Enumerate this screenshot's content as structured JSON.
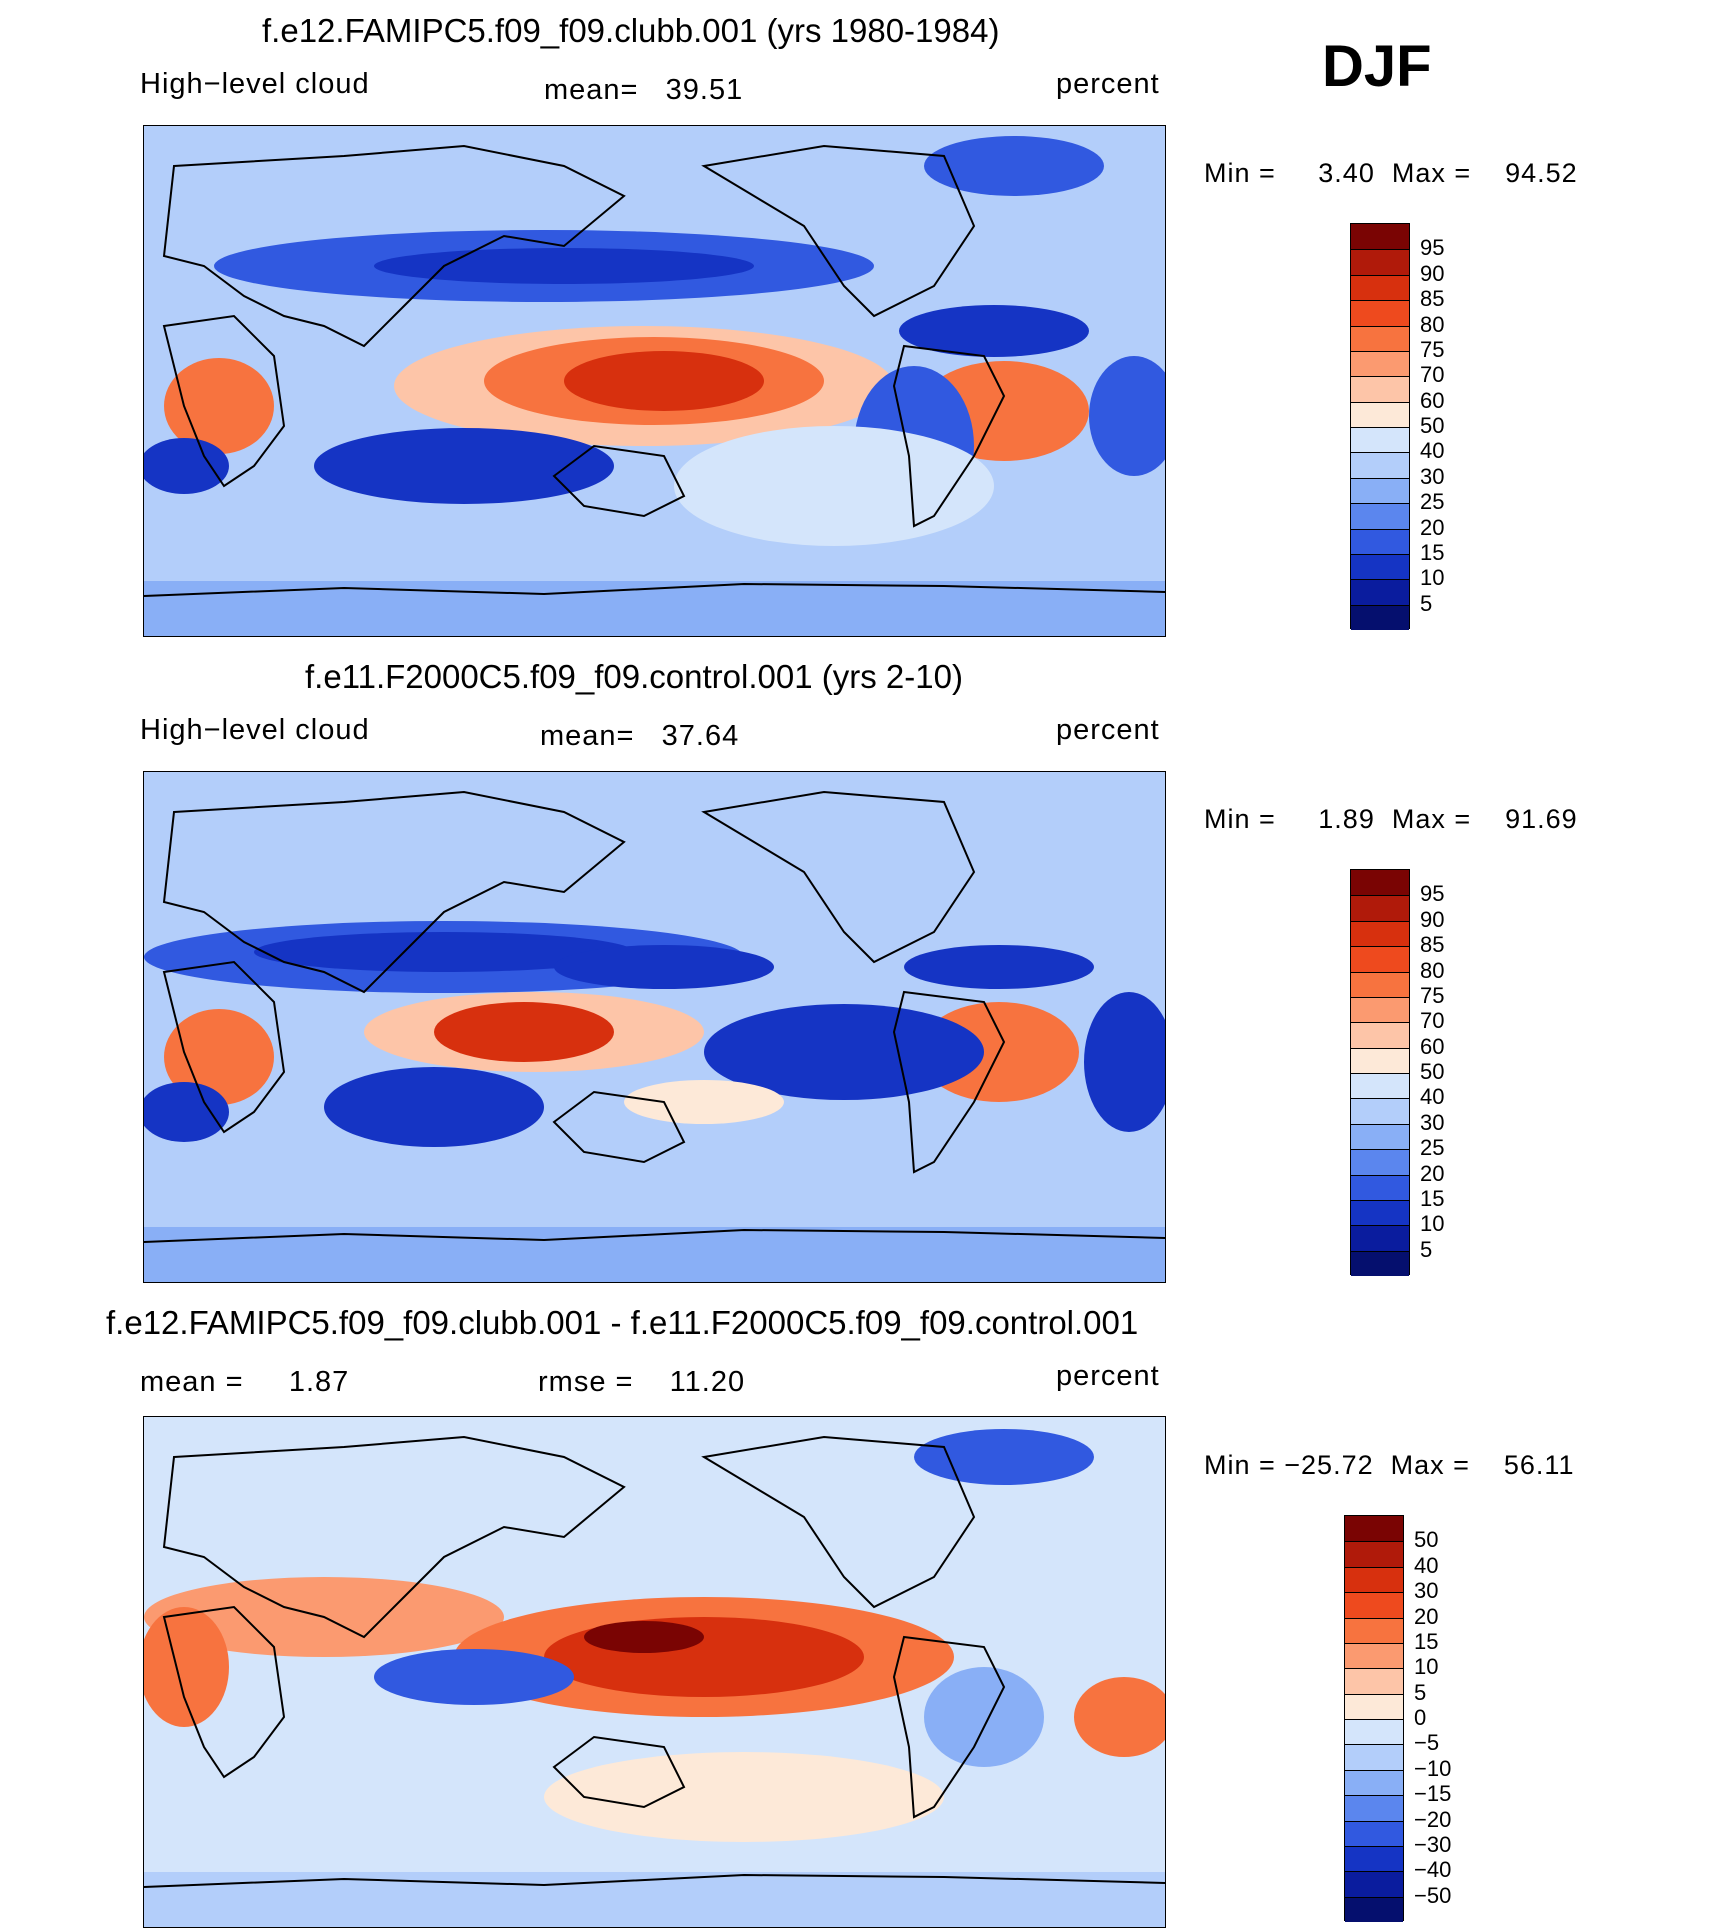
{
  "season": "DJF",
  "chart_data": [
    {
      "type": "heatmap",
      "title": "f.e12.FAMIPC5.f09_f09.clubb.001 (yrs 1980-1984)",
      "left_label": "High−level cloud",
      "center_label": "mean=   39.51",
      "right_label": "percent",
      "stats": "Min =     3.40  Max =    94.52",
      "min": 3.4,
      "max": 94.52,
      "mean": 39.51,
      "colorbar_levels": [
        "95",
        "90",
        "85",
        "80",
        "75",
        "70",
        "60",
        "50",
        "40",
        "30",
        "25",
        "20",
        "15",
        "10",
        "5"
      ],
      "colors": [
        "#7a0403",
        "#b01a0a",
        "#d7300e",
        "#ee4a1e",
        "#f7733f",
        "#fb9a70",
        "#fdc5a8",
        "#fde9d8",
        "#d4e5fb",
        "#b3cefa",
        "#89aff6",
        "#5b86ee",
        "#3159e0",
        "#1534c4",
        "#0a1c9e",
        "#050f6e"
      ]
    },
    {
      "type": "heatmap",
      "title": "f.e11.F2000C5.f09_f09.control.001 (yrs 2-10)",
      "left_label": "High−level cloud",
      "center_label": "mean=   37.64",
      "right_label": "percent",
      "stats": "Min =     1.89  Max =    91.69",
      "min": 1.89,
      "max": 91.69,
      "mean": 37.64,
      "colorbar_levels": [
        "95",
        "90",
        "85",
        "80",
        "75",
        "70",
        "60",
        "50",
        "40",
        "30",
        "25",
        "20",
        "15",
        "10",
        "5"
      ],
      "colors": [
        "#7a0403",
        "#b01a0a",
        "#d7300e",
        "#ee4a1e",
        "#f7733f",
        "#fb9a70",
        "#fdc5a8",
        "#fde9d8",
        "#d4e5fb",
        "#b3cefa",
        "#89aff6",
        "#5b86ee",
        "#3159e0",
        "#1534c4",
        "#0a1c9e",
        "#050f6e"
      ]
    },
    {
      "type": "heatmap",
      "title": "f.e12.FAMIPC5.f09_f09.clubb.001 - f.e11.F2000C5.f09_f09.control.001",
      "left_label": "mean =     1.87",
      "center_label": "rmse =    11.20",
      "right_label": "percent",
      "stats": "Min = −25.72  Max =    56.11",
      "min": -25.72,
      "max": 56.11,
      "mean": 1.87,
      "rmse": 11.2,
      "colorbar_levels": [
        "50",
        "40",
        "30",
        "20",
        "15",
        "10",
        "5",
        "0",
        "−5",
        "−10",
        "−15",
        "−20",
        "−30",
        "−40",
        "−50"
      ],
      "colors": [
        "#7a0403",
        "#b01a0a",
        "#d7300e",
        "#ee4a1e",
        "#f7733f",
        "#fb9a70",
        "#fdc5a8",
        "#fde9d8",
        "#d4e5fb",
        "#b3cefa",
        "#89aff6",
        "#5b86ee",
        "#3159e0",
        "#1534c4",
        "#0a1c9e",
        "#050f6e"
      ]
    }
  ]
}
